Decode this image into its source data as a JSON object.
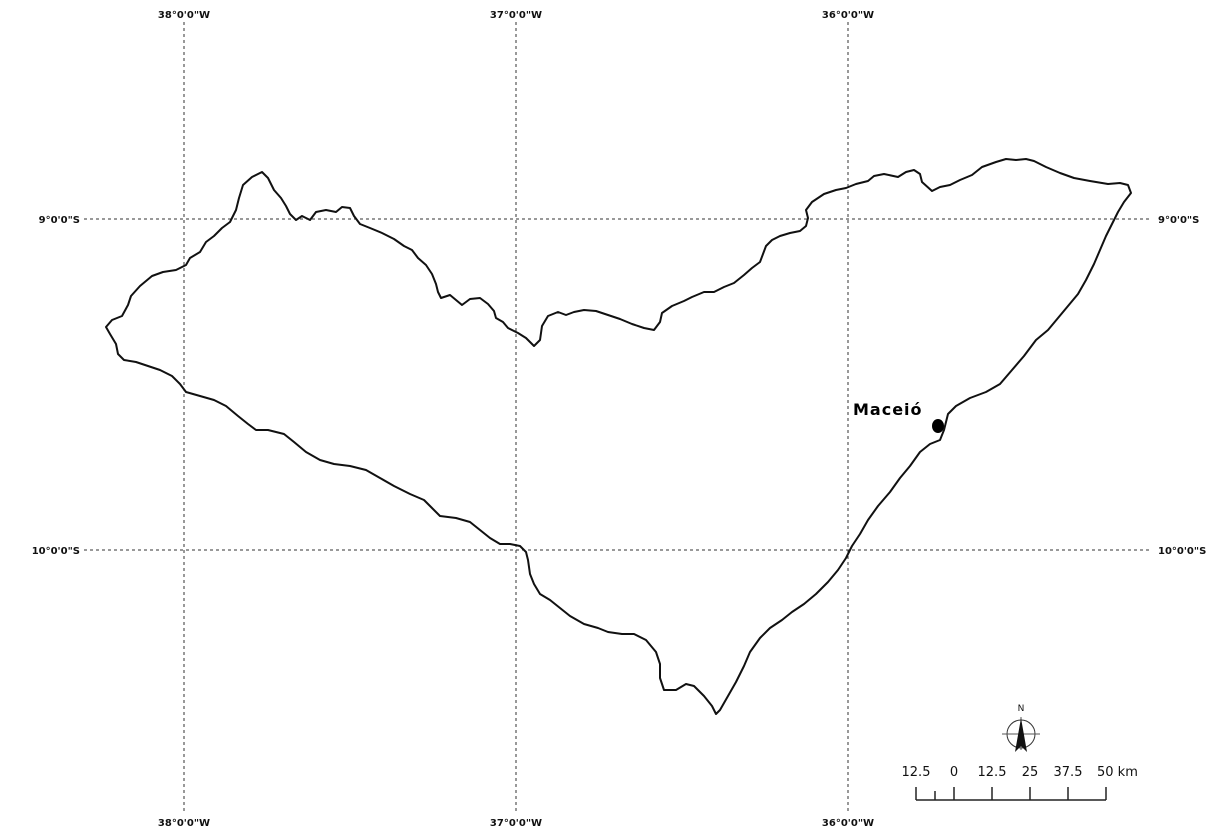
{
  "graticule": {
    "longitudes": [
      {
        "label_top": "38°0'0\"W",
        "label_bottom": "38°0'0\"W"
      },
      {
        "label_top": "37°0'0\"W",
        "label_bottom": "37°0'0\"W"
      },
      {
        "label_top": "36°0'0\"W",
        "label_bottom": "36°0'0\"W"
      }
    ],
    "latitudes": [
      {
        "label_left": "9°0'0\"S",
        "label_right": "9°0'0\"S"
      },
      {
        "label_left": "10°0'0\"S",
        "label_right": "10°0'0\"S"
      }
    ]
  },
  "city": {
    "name": "Maceió"
  },
  "north_arrow": {
    "label": "N"
  },
  "scale_bar": {
    "ticks": [
      "12.5",
      "0",
      "12.5",
      "25",
      "37.5",
      "50 km"
    ]
  },
  "colors": {
    "outline": "#111111",
    "grid": "#333333",
    "city_marker": "#000000"
  }
}
